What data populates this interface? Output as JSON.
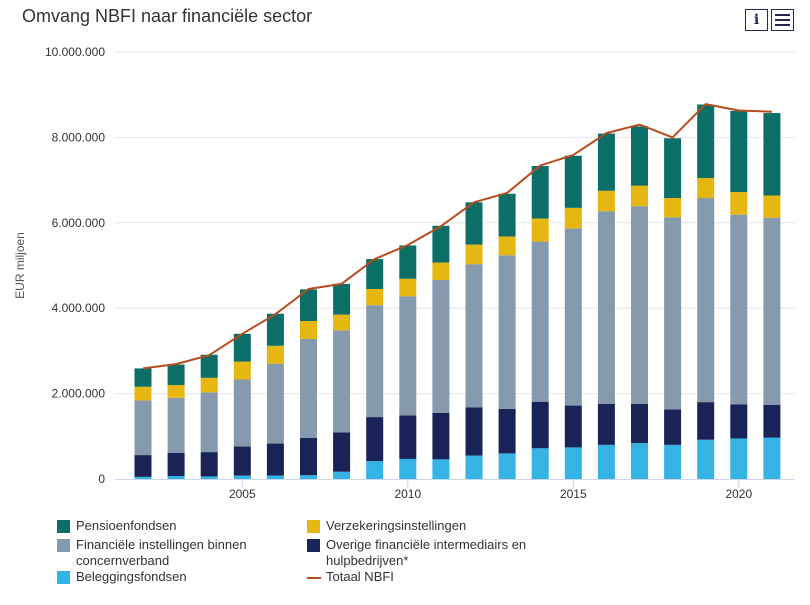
{
  "header": {
    "title": "Omvang NBFI naar financiële sector",
    "info_icon": "info-icon",
    "menu_icon": "hamburger-menu-icon"
  },
  "chart_data": {
    "type": "bar",
    "stacked": true,
    "title": "Omvang NBFI naar financiële sector",
    "ylabel": "EUR miljoen",
    "xlabel": "",
    "ylim": [
      0,
      10000000
    ],
    "yticks": [
      0,
      2000000,
      4000000,
      6000000,
      8000000,
      10000000
    ],
    "ytick_labels": [
      "0",
      "2.000.000",
      "4.000.000",
      "6.000.000",
      "8.000.000",
      "10.000.000"
    ],
    "xticks": [
      2005,
      2010,
      2015,
      2020
    ],
    "xtick_labels": [
      "2005",
      "2010",
      "2015",
      "2020"
    ],
    "grid": true,
    "legend_position": "bottom",
    "categories": [
      2002,
      2003,
      2004,
      2005,
      2006,
      2007,
      2008,
      2009,
      2010,
      2011,
      2012,
      2013,
      2014,
      2015,
      2016,
      2017,
      2018,
      2019,
      2020,
      2021
    ],
    "series": [
      {
        "name": "Beleggingsfondsen",
        "color": "#34b3e4",
        "values": [
          50000,
          70000,
          60000,
          80000,
          80000,
          90000,
          170000,
          420000,
          470000,
          460000,
          550000,
          600000,
          720000,
          740000,
          800000,
          840000,
          800000,
          920000,
          950000,
          970000
        ]
      },
      {
        "name": "Overige financiële intermediairs en hulpbedrijven*",
        "color": "#1a2358",
        "values": [
          510000,
          540000,
          570000,
          680000,
          750000,
          870000,
          920000,
          1030000,
          1020000,
          1090000,
          1130000,
          1040000,
          1090000,
          980000,
          960000,
          920000,
          830000,
          880000,
          800000,
          770000
        ]
      },
      {
        "name": "Financiële instellingen binnen concernverband",
        "color": "#869aad",
        "values": [
          1280000,
          1290000,
          1400000,
          1570000,
          1870000,
          2320000,
          2390000,
          2620000,
          2790000,
          3110000,
          3350000,
          3600000,
          3750000,
          4150000,
          4510000,
          4630000,
          4500000,
          4780000,
          4440000,
          4380000
        ]
      },
      {
        "name": "Verzekeringsinstellingen",
        "color": "#e7b711",
        "values": [
          320000,
          300000,
          340000,
          420000,
          420000,
          420000,
          370000,
          380000,
          410000,
          410000,
          460000,
          440000,
          540000,
          480000,
          480000,
          480000,
          450000,
          470000,
          530000,
          520000
        ]
      },
      {
        "name": "Pensioenfondsen",
        "color": "#0b6e67",
        "values": [
          430000,
          480000,
          540000,
          650000,
          750000,
          740000,
          720000,
          700000,
          780000,
          860000,
          990000,
          1000000,
          1230000,
          1220000,
          1340000,
          1390000,
          1400000,
          1720000,
          1900000,
          1930000
        ]
      }
    ],
    "line_series": {
      "name": "Totaal NBFI",
      "color": "#b64d1f",
      "values": [
        2590000,
        2690000,
        2900000,
        3400000,
        3860000,
        4450000,
        4570000,
        5150000,
        5480000,
        5920000,
        6480000,
        6700000,
        7340000,
        7590000,
        8100000,
        8300000,
        8000000,
        8780000,
        8630000,
        8600000
      ]
    }
  },
  "legend": [
    {
      "label": "Pensioenfondsen",
      "color": "#0b6e67",
      "kind": "box"
    },
    {
      "label": "Verzekeringsinstellingen",
      "color": "#e7b711",
      "kind": "box"
    },
    {
      "label": "Financiële instellingen binnen concernverband",
      "color": "#869aad",
      "kind": "box"
    },
    {
      "label": "Overige financiële intermediairs en hulpbedrijven*",
      "color": "#1a2358",
      "kind": "box"
    },
    {
      "label": "Beleggingsfondsen",
      "color": "#34b3e4",
      "kind": "box"
    },
    {
      "label": "Totaal NBFI",
      "color": "#b64d1f",
      "kind": "line"
    }
  ]
}
